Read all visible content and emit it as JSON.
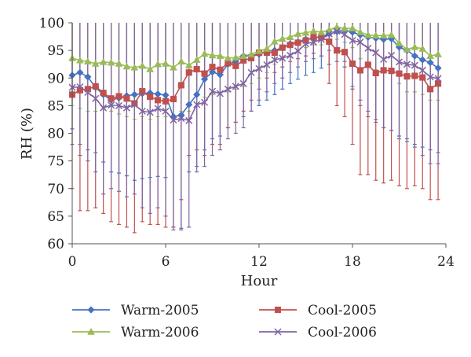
{
  "chart_data": {
    "type": "line",
    "title": "",
    "xlabel": "Hour",
    "ylabel": "RH (%)",
    "xlim": [
      0,
      24
    ],
    "ylim": [
      60,
      100
    ],
    "xticks": [
      0,
      6,
      12,
      18,
      24
    ],
    "yticks": [
      60,
      65,
      70,
      75,
      80,
      85,
      90,
      95,
      100
    ],
    "x_tick_labels": [
      "0",
      "6",
      "12",
      "18",
      "24"
    ],
    "y_tick_labels": [
      "60",
      "65",
      "70",
      "75",
      "80",
      "85",
      "90",
      "95",
      "100"
    ],
    "grid": false,
    "legend_position": "bottom",
    "error_bars": true,
    "x": [
      0,
      0.5,
      1,
      1.5,
      2,
      2.5,
      3,
      3.5,
      4,
      4.5,
      5,
      5.5,
      6,
      6.5,
      7,
      7.5,
      8,
      8.5,
      9,
      9.5,
      10,
      10.5,
      11,
      11.5,
      12,
      12.5,
      13,
      13.5,
      14,
      14.5,
      15,
      15.5,
      16,
      16.5,
      17,
      17.5,
      18,
      18.5,
      19,
      19.5,
      20,
      20.5,
      21,
      21.5,
      22,
      22.5,
      23,
      23.5
    ],
    "series": [
      {
        "name": "Warm-2005",
        "color": "#4472c4",
        "marker": "diamond",
        "values": [
          90.5,
          91.0,
          90.2,
          88.3,
          87.0,
          86.0,
          86.4,
          86.8,
          87.0,
          87.2,
          87.3,
          87.1,
          86.9,
          83.0,
          83.3,
          85.2,
          87.0,
          89.8,
          91.1,
          90.6,
          92.5,
          93.0,
          94.0,
          94.1,
          94.3,
          94.8,
          95.0,
          95.5,
          96.2,
          96.5,
          97.0,
          97.2,
          97.5,
          98.0,
          98.4,
          98.7,
          98.3,
          97.8,
          97.4,
          97.2,
          97.0,
          97.1,
          95.6,
          95.0,
          94.0,
          93.3,
          92.8,
          91.8
        ],
        "err_low": [
          80.8,
          76.0,
          77.0,
          76.5,
          74.8,
          73.0,
          72.8,
          72.3,
          71.5,
          71.8,
          72.0,
          72.2,
          72.0,
          63.0,
          62.8,
          73.0,
          74.0,
          77.0,
          79.0,
          79.5,
          81.0,
          82.0,
          83.0,
          84.0,
          85.0,
          86.0,
          87.0,
          88.0,
          89.0,
          89.8,
          90.5,
          91.0,
          91.8,
          92.5,
          93.0,
          92.0,
          88.0,
          85.0,
          83.0,
          82.0,
          81.0,
          80.5,
          79.5,
          79.0,
          78.0,
          77.5,
          77.0,
          76.5
        ],
        "err_high": [
          100,
          100,
          100,
          100,
          100,
          100,
          100,
          100,
          100,
          100,
          100,
          100,
          100,
          100,
          100,
          100,
          100,
          100,
          100,
          100,
          100,
          100,
          100,
          100,
          100,
          100,
          100,
          100,
          100,
          100,
          100,
          100,
          100,
          100,
          100,
          100,
          100,
          100,
          100,
          100,
          100,
          100,
          100,
          100,
          100,
          100,
          100,
          100
        ]
      },
      {
        "name": "Cool-2005",
        "color": "#c0504d",
        "marker": "square",
        "values": [
          87.0,
          87.8,
          88.0,
          88.5,
          87.3,
          86.3,
          86.7,
          86.3,
          85.4,
          87.6,
          86.6,
          86.0,
          85.8,
          86.2,
          88.7,
          91.0,
          91.6,
          90.8,
          92.0,
          91.5,
          92.7,
          92.2,
          93.2,
          93.6,
          94.6,
          94.6,
          94.6,
          95.5,
          96.0,
          96.4,
          96.8,
          97.4,
          97.4,
          96.6,
          95.0,
          94.7,
          92.6,
          91.4,
          92.4,
          90.9,
          91.4,
          91.3,
          90.8,
          90.3,
          90.4,
          90.1,
          88.0,
          89.0
        ],
        "err_low": [
          70.0,
          66.0,
          66.0,
          66.5,
          65.5,
          64.0,
          63.5,
          63.0,
          62.0,
          64.0,
          63.5,
          63.5,
          63.0,
          63.0,
          68.0,
          76.0,
          77.0,
          76.0,
          78.0,
          78.0,
          81.0,
          82.0,
          84.0,
          86.0,
          88.0,
          90.0,
          91.0,
          92.0,
          93.0,
          93.5,
          94.0,
          94.5,
          94.0,
          89.0,
          85.0,
          83.0,
          78.0,
          72.5,
          72.5,
          71.5,
          71.0,
          71.5,
          70.5,
          70.0,
          70.5,
          70.0,
          68.0,
          68.0
        ],
        "err_high": [
          100,
          100,
          100,
          100,
          100,
          100,
          100,
          100,
          100,
          100,
          100,
          100,
          100,
          100,
          100,
          100,
          100,
          100,
          100,
          100,
          100,
          100,
          100,
          100,
          100,
          100,
          100,
          100,
          100,
          100,
          100,
          100,
          100,
          100,
          100,
          100,
          100,
          100,
          100,
          100,
          100,
          100,
          100,
          100,
          100,
          100,
          100,
          100
        ]
      },
      {
        "name": "Warm-2006",
        "color": "#9bbb59",
        "marker": "triangle",
        "values": [
          93.6,
          93.2,
          93.0,
          92.6,
          92.9,
          92.8,
          92.6,
          92.1,
          91.9,
          92.2,
          91.6,
          92.5,
          92.6,
          91.9,
          93.0,
          92.3,
          93.3,
          94.4,
          94.1,
          94.0,
          93.6,
          93.7,
          94.0,
          94.3,
          94.9,
          95.3,
          96.6,
          97.1,
          97.4,
          98.0,
          98.2,
          98.5,
          98.3,
          98.7,
          99.2,
          99.0,
          99.0,
          98.3,
          97.8,
          97.7,
          97.7,
          97.8,
          96.3,
          95.2,
          95.6,
          95.3,
          94.0,
          94.3
        ],
        "err_low": [
          85.0,
          84.5,
          84.0,
          84.0,
          84.5,
          84.0,
          83.5,
          83.0,
          82.5,
          83.0,
          82.5,
          83.0,
          83.0,
          82.5,
          84.0,
          84.0,
          85.0,
          86.5,
          87.0,
          87.0,
          87.5,
          88.0,
          88.5,
          89.0,
          90.0,
          91.0,
          92.5,
          93.5,
          94.0,
          95.0,
          95.5,
          96.0,
          96.0,
          96.5,
          97.0,
          96.5,
          95.5,
          93.5,
          92.0,
          91.5,
          91.0,
          91.0,
          89.0,
          87.5,
          87.5,
          87.0,
          86.0,
          86.0
        ],
        "err_high": [
          100,
          100,
          100,
          100,
          100,
          100,
          100,
          100,
          100,
          100,
          100,
          100,
          100,
          100,
          100,
          100,
          100,
          100,
          100,
          100,
          100,
          100,
          100,
          100,
          100,
          100,
          100,
          100,
          100,
          100,
          100,
          100,
          100,
          100,
          100,
          100,
          100,
          100,
          100,
          100,
          100,
          100,
          100,
          100,
          100,
          100,
          100,
          100
        ]
      },
      {
        "name": "Cool-2006",
        "color": "#8064a2",
        "marker": "x",
        "values": [
          88.3,
          88.4,
          87.4,
          86.3,
          84.6,
          85.1,
          85.0,
          84.6,
          85.2,
          84.0,
          83.8,
          84.5,
          84.0,
          82.4,
          82.7,
          82.3,
          85.2,
          85.6,
          87.6,
          87.2,
          88.0,
          88.5,
          89.0,
          91.0,
          91.7,
          92.4,
          93.3,
          93.6,
          94.1,
          94.9,
          96.2,
          96.5,
          97.0,
          98.0,
          98.5,
          97.9,
          96.8,
          96.5,
          95.4,
          94.6,
          93.4,
          94.1,
          92.9,
          92.5,
          92.3,
          91.4,
          90.2,
          89.9
        ],
        "err_low": [
          78.0,
          78.0,
          75.0,
          73.0,
          69.0,
          70.0,
          69.5,
          68.5,
          69.0,
          66.5,
          65.5,
          66.5,
          65.0,
          62.5,
          62.5,
          63.0,
          73.0,
          74.0,
          76.0,
          77.0,
          79.0,
          80.0,
          81.0,
          84.0,
          86.0,
          87.5,
          89.0,
          90.0,
          91.0,
          92.0,
          93.0,
          93.5,
          94.0,
          95.0,
          95.5,
          93.0,
          88.5,
          86.0,
          84.0,
          82.5,
          81.0,
          80.5,
          79.0,
          78.5,
          77.5,
          76.0,
          74.5,
          74.5
        ],
        "err_high": [
          100,
          100,
          100,
          100,
          100,
          100,
          100,
          100,
          100,
          100,
          100,
          100,
          100,
          100,
          100,
          100,
          100,
          100,
          100,
          100,
          100,
          100,
          100,
          100,
          100,
          100,
          100,
          100,
          100,
          100,
          100,
          100,
          100,
          100,
          100,
          100,
          100,
          100,
          100,
          100,
          100,
          100,
          100,
          100,
          100,
          100,
          100,
          100
        ]
      }
    ]
  }
}
